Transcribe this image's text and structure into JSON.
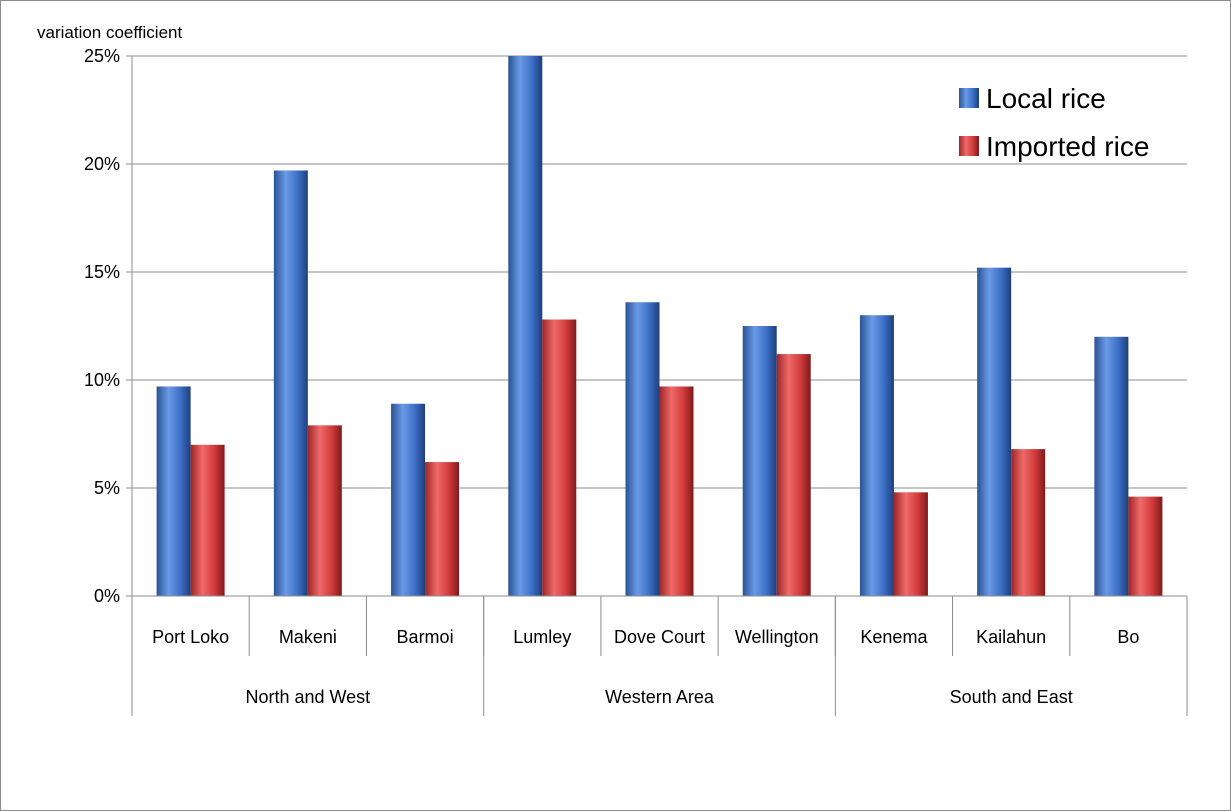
{
  "chart_data": {
    "type": "bar",
    "ylabel": "variation coefficient",
    "ylim": [
      0,
      25
    ],
    "y_ticks": [
      "0%",
      "5%",
      "10%",
      "15%",
      "20%",
      "25%"
    ],
    "y_tick_values": [
      0,
      5,
      10,
      15,
      20,
      25
    ],
    "grid": true,
    "legend_position": "top-right",
    "categories": [
      "Port Loko",
      "Makeni",
      "Barmoi",
      "Lumley",
      "Dove Court",
      "Wellington",
      "Kenema",
      "Kailahun",
      "Bo"
    ],
    "groups": [
      {
        "label": "North and West",
        "count": 3
      },
      {
        "label": "Western Area",
        "count": 3
      },
      {
        "label": "South and East",
        "count": 3
      }
    ],
    "series": [
      {
        "name": "Local rice",
        "color": "#3a6fc4",
        "values": [
          9.7,
          19.7,
          8.9,
          25.0,
          13.6,
          12.5,
          13.0,
          15.2,
          12.0
        ]
      },
      {
        "name": "Imported rice",
        "color": "#d23b3b",
        "values": [
          7.0,
          7.9,
          6.2,
          12.8,
          9.7,
          11.2,
          4.8,
          6.8,
          4.6
        ]
      }
    ]
  }
}
